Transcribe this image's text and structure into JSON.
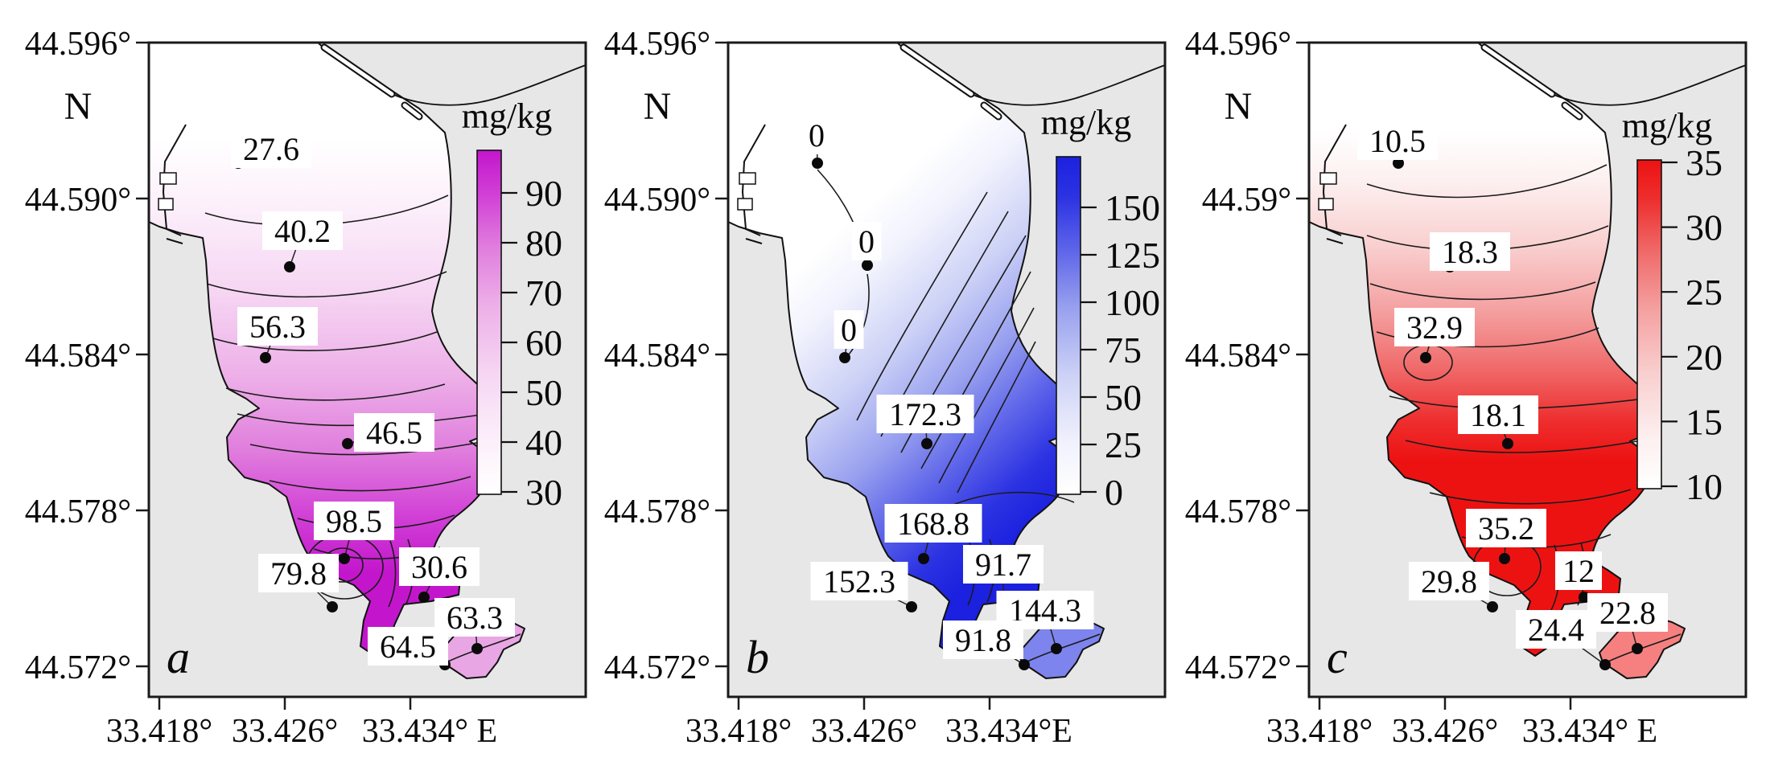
{
  "figure": {
    "description": "Three-panel contour maps of pollutant concentration (mg/kg) in a bay",
    "units": "mg/kg"
  },
  "chart_data": [
    {
      "type": "contour-map",
      "panel_letter": "a",
      "units_label": "mg/kg",
      "colorbar": {
        "title": "mg/kg",
        "ticks": [
          "90",
          "80",
          "70",
          "60",
          "50",
          "40",
          "30"
        ],
        "min": 30,
        "max": 98.5,
        "max_color": "#c316cc"
      },
      "y_axis": {
        "compass": "N",
        "labels": [
          "44.596°",
          "44.590°",
          "44.584°",
          "44.578°",
          "44.572°"
        ]
      },
      "x_axis": {
        "labels": [
          "33.418°",
          "33.426°",
          "33.434° E"
        ]
      },
      "stations": [
        {
          "value": "27.6",
          "dot": [
            111,
            150
          ],
          "label": [
            152,
            132
          ]
        },
        {
          "value": "40.2",
          "dot": [
            175,
            279
          ],
          "label": [
            191,
            234
          ]
        },
        {
          "value": "56.3",
          "dot": [
            145,
            392
          ],
          "label": [
            160,
            353
          ]
        },
        {
          "value": "46.5",
          "dot": [
            247,
            499
          ],
          "label": [
            305,
            485
          ]
        },
        {
          "value": "98.5",
          "dot": [
            243,
            642
          ],
          "label": [
            255,
            595
          ]
        },
        {
          "value": "79.8",
          "dot": [
            228,
            702
          ],
          "label": [
            186,
            660
          ]
        },
        {
          "value": "30.6",
          "dot": [
            342,
            690
          ],
          "label": [
            361,
            652
          ]
        },
        {
          "value": "63.3",
          "dot": [
            408,
            754
          ],
          "label": [
            405,
            715
          ]
        },
        {
          "value": "64.5",
          "dot": [
            368,
            774
          ],
          "label": [
            322,
            751
          ]
        }
      ]
    },
    {
      "type": "contour-map",
      "panel_letter": "b",
      "units_label": "mg/kg",
      "colorbar": {
        "title": "mg/kg",
        "ticks": [
          "150",
          "125",
          "100",
          "75",
          "50",
          "25",
          "0"
        ],
        "min": 0,
        "max": 172.3,
        "max_color": "#1b21de"
      },
      "y_axis": {
        "compass": "N",
        "labels": [
          "44.596°",
          "44.590°",
          "44.584°",
          "44.578°",
          "44.572°"
        ]
      },
      "x_axis": {
        "labels": [
          "33.418°",
          "33.426°",
          "33.434°E"
        ]
      },
      "stations": [
        {
          "value": "0",
          "dot": [
            111,
            150
          ],
          "label": [
            110,
            115
          ]
        },
        {
          "value": "0",
          "dot": [
            173,
            277
          ],
          "label": [
            172,
            247
          ]
        },
        {
          "value": "0",
          "dot": [
            145,
            392
          ],
          "label": [
            150,
            357
          ]
        },
        {
          "value": "172.3",
          "dot": [
            247,
            499
          ],
          "label": [
            245,
            462
          ]
        },
        {
          "value": "168.8",
          "dot": [
            243,
            642
          ],
          "label": [
            255,
            598
          ]
        },
        {
          "value": "152.3",
          "dot": [
            228,
            702
          ],
          "label": [
            163,
            670
          ]
        },
        {
          "value": "91.7",
          "dot": [
            342,
            690
          ],
          "label": [
            342,
            649
          ]
        },
        {
          "value": "144.3",
          "dot": [
            408,
            754
          ],
          "label": [
            394,
            706
          ]
        },
        {
          "value": "91.8",
          "dot": [
            368,
            774
          ],
          "label": [
            317,
            743
          ]
        }
      ]
    },
    {
      "type": "contour-map",
      "panel_letter": "c",
      "units_label": "mg/kg",
      "colorbar": {
        "title": "mg/kg",
        "ticks": [
          "35",
          "30",
          "25",
          "20",
          "15",
          "10"
        ],
        "min": 10,
        "max": 35.2,
        "max_color": "#ed1212"
      },
      "y_axis": {
        "compass": "N",
        "labels": [
          "44.596°",
          "44.59°",
          "44.584°",
          "44.578°",
          "44.572°"
        ]
      },
      "x_axis": {
        "labels": [
          "33.418°",
          "33.426°",
          "33.434° E"
        ]
      },
      "stations": [
        {
          "value": "10.5",
          "dot": [
            111,
            150
          ],
          "label": [
            110,
            122
          ]
        },
        {
          "value": "18.3",
          "dot": [
            175,
            279
          ],
          "label": [
            200,
            260
          ]
        },
        {
          "value": "32.9",
          "dot": [
            145,
            392
          ],
          "label": [
            156,
            354
          ]
        },
        {
          "value": "18.1",
          "dot": [
            247,
            499
          ],
          "label": [
            235,
            463
          ]
        },
        {
          "value": "35.2",
          "dot": [
            243,
            642
          ],
          "label": [
            245,
            604
          ]
        },
        {
          "value": "29.8",
          "dot": [
            228,
            702
          ],
          "label": [
            174,
            670
          ]
        },
        {
          "value": "12",
          "dot": [
            342,
            690
          ],
          "label": [
            335,
            657
          ]
        },
        {
          "value": "22.8",
          "dot": [
            408,
            754
          ],
          "label": [
            396,
            709
          ]
        },
        {
          "value": "24.4",
          "dot": [
            368,
            774
          ],
          "label": [
            307,
            730
          ]
        }
      ]
    }
  ]
}
